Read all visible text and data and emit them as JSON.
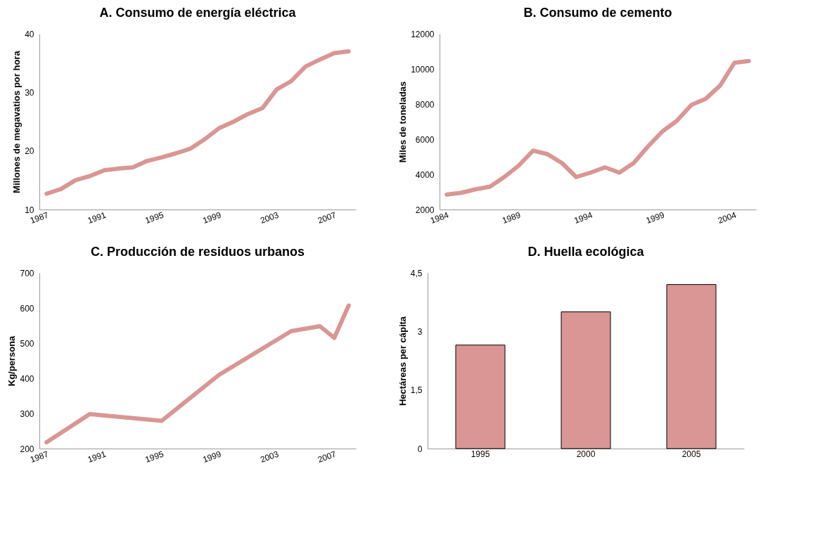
{
  "chart_data": [
    {
      "type": "line",
      "title": "A. Consumo de energía eléctrica",
      "ylabel": "Millones de megavatios por hora",
      "x": [
        1987,
        1988,
        1989,
        1990,
        1991,
        1992,
        1993,
        1994,
        1995,
        1996,
        1997,
        1998,
        1999,
        2000,
        2001,
        2002,
        2003,
        2004,
        2005,
        2006,
        2007,
        2008
      ],
      "series": [
        {
          "color": "#d99694",
          "values": [
            12.7,
            13.5,
            15.0,
            15.7,
            16.7,
            17.0,
            17.2,
            18.3,
            18.9,
            19.6,
            20.4,
            22.0,
            23.9,
            25.0,
            26.3,
            27.3,
            30.5,
            31.9,
            34.4,
            35.6,
            36.7,
            37.0
          ]
        }
      ],
      "xlim": [
        1986.5,
        2008.5
      ],
      "xticks": [
        1987,
        1991,
        1995,
        1999,
        2003,
        2007
      ],
      "ylim": [
        10,
        40
      ],
      "yticks": [
        10,
        20,
        30,
        40
      ],
      "grid": false,
      "marker": "none",
      "line_style": "solid"
    },
    {
      "type": "line",
      "title": "B. Consumo de cemento",
      "ylabel": "Miles de toneladas",
      "x": [
        1984,
        1985,
        1986,
        1987,
        1988,
        1989,
        1990,
        1991,
        1992,
        1993,
        1994,
        1995,
        1996,
        1997,
        1998,
        1999,
        2000,
        2001,
        2002,
        2003,
        2004,
        2005
      ],
      "series": [
        {
          "color": "#d99694",
          "values": [
            2850,
            2950,
            3150,
            3300,
            3850,
            4500,
            5350,
            5150,
            4650,
            3850,
            4100,
            4400,
            4100,
            4650,
            5600,
            6450,
            7050,
            7950,
            8300,
            9050,
            10350,
            10450
          ]
        }
      ],
      "xlim": [
        1983.5,
        2005.5
      ],
      "xticks": [
        1984,
        1989,
        1994,
        1999,
        2004
      ],
      "ylim": [
        2000,
        12000
      ],
      "yticks": [
        2000,
        4000,
        6000,
        8000,
        10000,
        12000
      ],
      "grid": false,
      "marker": "none",
      "line_style": "solid"
    },
    {
      "type": "line",
      "title": "C. Producción de residuos urbanos",
      "ylabel": "Kg/persona",
      "x": [
        1987,
        1990,
        1995,
        1999,
        2004,
        2006,
        2007,
        2008
      ],
      "series": [
        {
          "color": "#d99694",
          "values": [
            218,
            298,
            279,
            410,
            534,
            548,
            515,
            607
          ]
        }
      ],
      "xlim": [
        1986.5,
        2008.5
      ],
      "xticks": [
        1987,
        1991,
        1995,
        1999,
        2003,
        2007
      ],
      "ylim": [
        200,
        700
      ],
      "yticks": [
        200,
        300,
        400,
        500,
        600,
        700
      ],
      "grid": false,
      "marker": "none",
      "line_style": "solid"
    },
    {
      "type": "bar",
      "title": "D. Huella ecológica",
      "ylabel": "Hectáreas per cápita",
      "categories": [
        "1995",
        "2000",
        "2005"
      ],
      "series": [
        {
          "color": "#d99694",
          "values": [
            2.65,
            3.5,
            4.2
          ]
        }
      ],
      "ylim": [
        0,
        4.5
      ],
      "yticks": [
        0,
        {
          "value": 1.5,
          "label": "1,5"
        },
        3,
        {
          "value": 4.5,
          "label": "4,5"
        }
      ],
      "grid": false
    }
  ]
}
